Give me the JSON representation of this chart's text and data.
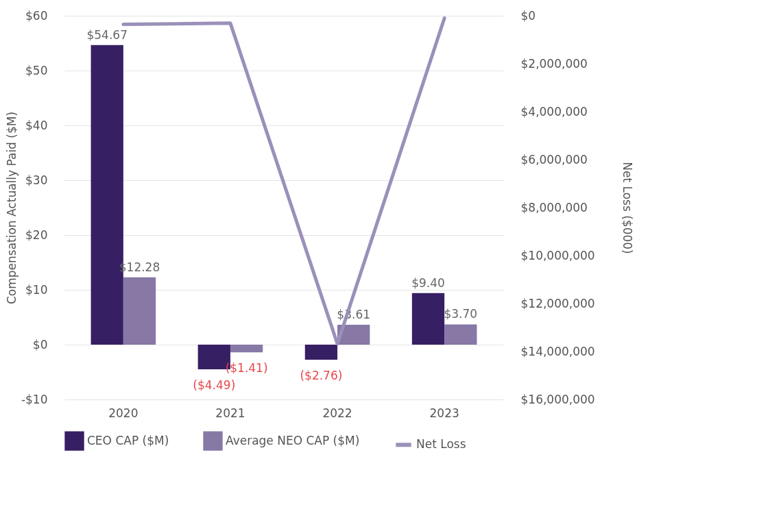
{
  "chart_data": {
    "type": "bar",
    "categories": [
      "2020",
      "2021",
      "2022",
      "2023"
    ],
    "ylabel": "Compensation Actually Paid ($M)",
    "y2label": "Net Loss ($000)",
    "ylim": [
      -10,
      60
    ],
    "yticks": [
      {
        "value": -10,
        "label": "-$10"
      },
      {
        "value": 0,
        "label": "$0"
      },
      {
        "value": 10,
        "label": "$10"
      },
      {
        "value": 20,
        "label": "$20"
      },
      {
        "value": 30,
        "label": "$30"
      },
      {
        "value": 40,
        "label": "$40"
      },
      {
        "value": 50,
        "label": "$50"
      },
      {
        "value": 60,
        "label": "$60"
      }
    ],
    "y2lim": [
      16000000,
      0
    ],
    "y2ticks": [
      {
        "value": 0,
        "label": "$0"
      },
      {
        "value": 2000000,
        "label": "$2,000,000"
      },
      {
        "value": 4000000,
        "label": "$4,000,000"
      },
      {
        "value": 6000000,
        "label": "$6,000,000"
      },
      {
        "value": 8000000,
        "label": "$8,000,000"
      },
      {
        "value": 10000000,
        "label": "$10,000,000"
      },
      {
        "value": 12000000,
        "label": "$12,000,000"
      },
      {
        "value": 14000000,
        "label": "$14,000,000"
      },
      {
        "value": 16000000,
        "label": "$16,000,000"
      }
    ],
    "grid": "y",
    "legend": "bottom",
    "series": [
      {
        "name": "CEO CAP ($M)",
        "color": "#371f63",
        "values": [
          54.67,
          -4.49,
          -2.76,
          9.4
        ],
        "value_labels": [
          "$54.67",
          "($4.49)",
          "($2.76)",
          "$9.40"
        ]
      },
      {
        "name": "Average NEO CAP ($M)",
        "color": "#8778a6",
        "values": [
          12.28,
          -1.41,
          3.61,
          3.7
        ],
        "value_labels": [
          "$12.28",
          "($1.41)",
          "$3.61",
          "$3.70"
        ]
      },
      {
        "name": "Net Loss",
        "type": "line",
        "axis": "y2",
        "color": "#9b90b9",
        "values": [
          360000,
          310000,
          13680000,
          100000
        ]
      }
    ]
  }
}
